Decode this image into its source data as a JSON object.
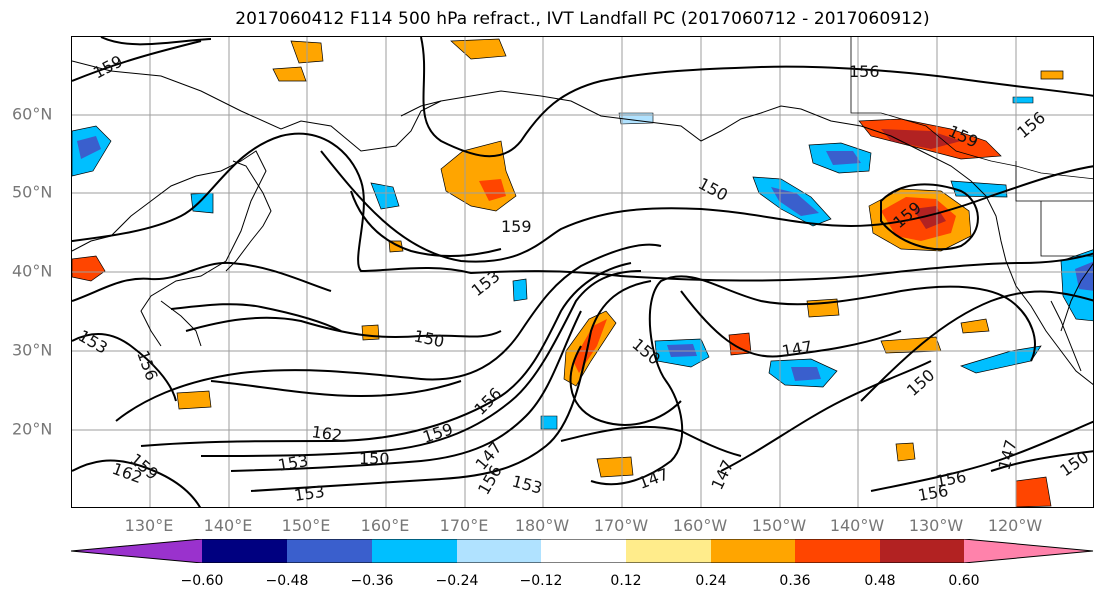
{
  "title": "2017060412 F114 500 hPa refract., IVT Landfall PC (2017060712 - 2017060912)",
  "lat_labels": [
    "60°N",
    "50°N",
    "40°N",
    "30°N",
    "20°N"
  ],
  "lon_labels": [
    "130°E",
    "140°E",
    "150°E",
    "160°E",
    "170°E",
    "180°W",
    "170°W",
    "160°W",
    "150°W",
    "140°W",
    "130°W",
    "120°W"
  ],
  "colorbar": {
    "ticks": [
      "−0.60",
      "−0.48",
      "−0.36",
      "−0.24",
      "−0.12",
      "0.12",
      "0.24",
      "0.36",
      "0.48",
      "0.60"
    ],
    "colors": [
      "#9a32cd",
      "#000080",
      "#3a5fcd",
      "#00bfff",
      "#b0e2ff",
      "#ffffff",
      "#ffec8b",
      "#ffa500",
      "#ff4500",
      "#b22222",
      "#ff82ab"
    ]
  },
  "contour_labels": [
    "159",
    "156",
    "159",
    "156",
    "159",
    "159",
    "153",
    "150",
    "153",
    "156",
    "150",
    "147",
    "150",
    "162",
    "159",
    "156",
    "153",
    "150",
    "147",
    "156",
    "153",
    "147",
    "147",
    "153",
    "156",
    "147",
    "150",
    "150",
    "162",
    "159",
    "156",
    "153"
  ],
  "colors": {
    "land": "#000000",
    "contour": "#000000",
    "grid": "#9e9e9e",
    "axis_label": "#777777"
  }
}
